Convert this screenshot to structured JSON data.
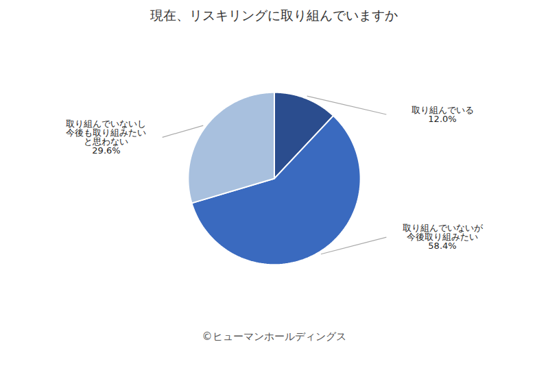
{
  "chart_data": {
    "type": "pie",
    "title": "現在、リスキリングに取り組んでいますか",
    "caption": "©ヒューマンホールディングス",
    "categories": [
      "取り組んでいる",
      "取り組んでいないが\n今後取り組みたい",
      "取り組んでいないし\n今後も取り組みたい\nと思わない"
    ],
    "values": [
      12.0,
      58.4,
      29.6
    ],
    "value_labels": [
      "12.0%",
      "58.4%",
      "29.6%"
    ],
    "data_labels": true,
    "colors": [
      "#2b4d8e",
      "#3a6abf",
      "#a8c0de"
    ]
  }
}
